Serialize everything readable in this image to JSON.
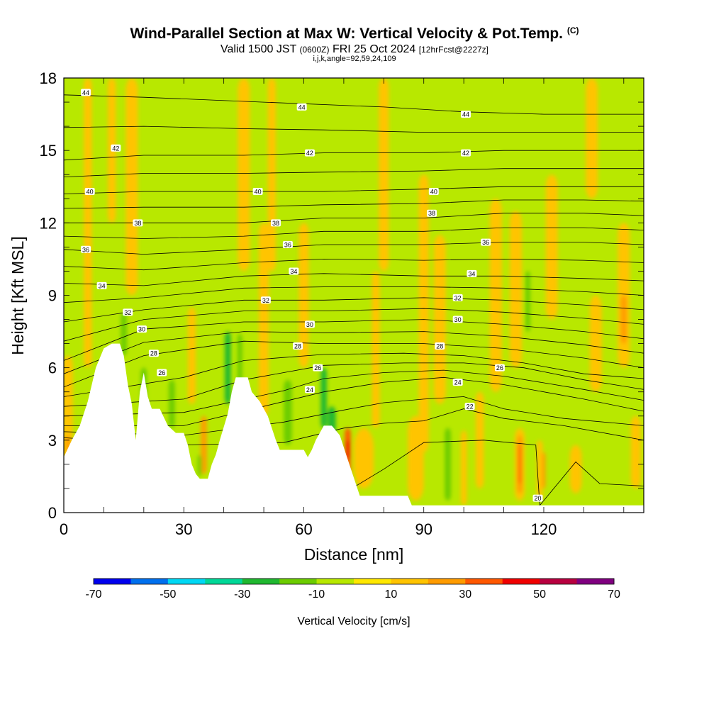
{
  "title": "Wind-Parallel Section at Max W: Vertical Velocity & Pot.Temp.",
  "title_mark": "(C)",
  "subtitle_main": "Valid 1500 JST",
  "subtitle_utc": "(0600Z)",
  "subtitle_date": "FRI 25 Oct 2024",
  "subtitle_fcst": "[12hrFcst@2227z]",
  "subtitle2": "i,j,k,angle=92,59,24,109",
  "chart_data": {
    "type": "heatmap",
    "xlabel": "Distance [nm]",
    "ylabel": "Height [Kft MSL]",
    "xlim": [
      0,
      145
    ],
    "ylim": [
      0,
      18
    ],
    "x_ticks": [
      0,
      30,
      60,
      90,
      120
    ],
    "y_ticks": [
      0,
      3,
      6,
      9,
      12,
      15,
      18
    ],
    "colorbar": {
      "label": "Vertical Velocity [cm/s]",
      "tick_labels": [
        "-70",
        "-50",
        "-30",
        "-10",
        "10",
        "30",
        "50",
        "70"
      ],
      "levels": [
        -70,
        -60,
        -50,
        -40,
        -30,
        -20,
        -10,
        0,
        10,
        20,
        30,
        40,
        50,
        60,
        70
      ],
      "colors": [
        "#0000ee",
        "#0070ee",
        "#00d8f4",
        "#00d898",
        "#20b830",
        "#6ccc00",
        "#b8e800",
        "#ffe800",
        "#ffc400",
        "#ff9c00",
        "#ff5800",
        "#f00000",
        "#b80040",
        "#800080"
      ]
    },
    "field_background_color": "#b8e800",
    "terrain_color": "#ffffff",
    "contour_field": "Potential Temperature",
    "contour_label_values": [
      "20",
      "22",
      "24",
      "26",
      "28",
      "30",
      "32",
      "34",
      "36",
      "38",
      "40",
      "42",
      "44"
    ],
    "terrain_profile_kft": [
      [
        0,
        2.3
      ],
      [
        2,
        3
      ],
      [
        4,
        3.6
      ],
      [
        6,
        4.6
      ],
      [
        8,
        6
      ],
      [
        10,
        6.8
      ],
      [
        12,
        7
      ],
      [
        14,
        7
      ],
      [
        15,
        6.5
      ],
      [
        16,
        5.3
      ],
      [
        17,
        4.5
      ],
      [
        18,
        3
      ],
      [
        19,
        5
      ],
      [
        20,
        5.8
      ],
      [
        21,
        4.8
      ],
      [
        22,
        4.3
      ],
      [
        24,
        4.3
      ],
      [
        26,
        3.6
      ],
      [
        28,
        3.3
      ],
      [
        30,
        3.3
      ],
      [
        31,
        2.8
      ],
      [
        32,
        2
      ],
      [
        33,
        1.6
      ],
      [
        34,
        1.4
      ],
      [
        36,
        1.4
      ],
      [
        37,
        2
      ],
      [
        38,
        2.4
      ],
      [
        39,
        3
      ],
      [
        41,
        4.1
      ],
      [
        42,
        5
      ],
      [
        43,
        5.6
      ],
      [
        46,
        5.6
      ],
      [
        47,
        5
      ],
      [
        49,
        4.6
      ],
      [
        51,
        4
      ],
      [
        52,
        3.5
      ],
      [
        53,
        3
      ],
      [
        54,
        2.6
      ],
      [
        60,
        2.6
      ],
      [
        61,
        2.3
      ],
      [
        62,
        2.6
      ],
      [
        63,
        3
      ],
      [
        65,
        3.6
      ],
      [
        67,
        3.6
      ],
      [
        69,
        3.2
      ],
      [
        71,
        2.2
      ],
      [
        73,
        1.2
      ],
      [
        74,
        0.7
      ],
      [
        86,
        0.7
      ],
      [
        87,
        0.3
      ],
      [
        145,
        0.3
      ]
    ],
    "theta_lines": [
      {
        "label": "20",
        "points": [
          [
            0,
            1.5
          ],
          [
            20,
            1.4
          ],
          [
            50,
            1.0
          ],
          [
            72,
            1.0
          ],
          [
            80,
            1.8
          ],
          [
            90,
            2.9
          ],
          [
            105,
            3.0
          ],
          [
            118,
            2.8
          ],
          [
            119,
            0.3
          ],
          [
            128,
            2.1
          ],
          [
            134,
            1.2
          ],
          [
            145,
            1.1
          ]
        ]
      },
      {
        "label": "22",
        "points": [
          [
            0,
            3.1
          ],
          [
            30,
            2.8
          ],
          [
            55,
            2.9
          ],
          [
            70,
            3.5
          ],
          [
            80,
            3.7
          ],
          [
            90,
            3.8
          ],
          [
            100,
            4.3
          ],
          [
            110,
            3.9
          ],
          [
            125,
            3.6
          ],
          [
            145,
            3.0
          ]
        ]
      },
      {
        "label": "24",
        "points": [
          [
            0,
            3.6
          ],
          [
            30,
            3.6
          ],
          [
            55,
            4.6
          ],
          [
            65,
            5.0
          ],
          [
            80,
            5.4
          ],
          [
            95,
            5.6
          ],
          [
            110,
            5.3
          ],
          [
            130,
            4.7
          ],
          [
            145,
            4.2
          ]
        ]
      },
      {
        "label": "26",
        "points": [
          [
            0,
            4.4
          ],
          [
            30,
            4.7
          ],
          [
            45,
            5.5
          ],
          [
            65,
            6.1
          ],
          [
            85,
            6.2
          ],
          [
            100,
            6.2
          ],
          [
            115,
            6.0
          ],
          [
            130,
            5.5
          ],
          [
            145,
            5.1
          ]
        ]
      },
      {
        "label": "28",
        "points": [
          [
            0,
            5.2
          ],
          [
            20,
            6.5
          ],
          [
            45,
            7.1
          ],
          [
            65,
            7.0
          ],
          [
            90,
            7.0
          ],
          [
            110,
            6.8
          ],
          [
            130,
            6.4
          ],
          [
            145,
            6.0
          ]
        ]
      },
      {
        "label": "30",
        "points": [
          [
            0,
            6.3
          ],
          [
            20,
            7.6
          ],
          [
            45,
            7.9
          ],
          [
            65,
            7.9
          ],
          [
            90,
            8.0
          ],
          [
            110,
            7.8
          ],
          [
            130,
            7.5
          ],
          [
            145,
            7.2
          ]
        ]
      },
      {
        "label": "32",
        "points": [
          [
            0,
            7.9
          ],
          [
            20,
            8.4
          ],
          [
            45,
            8.8
          ],
          [
            65,
            8.8
          ],
          [
            90,
            8.9
          ],
          [
            110,
            8.8
          ],
          [
            130,
            8.6
          ],
          [
            145,
            8.4
          ]
        ]
      },
      {
        "label": "34",
        "points": [
          [
            0,
            9.5
          ],
          [
            20,
            9.4
          ],
          [
            45,
            9.8
          ],
          [
            65,
            9.9
          ],
          [
            90,
            9.8
          ],
          [
            110,
            9.8
          ],
          [
            130,
            9.7
          ],
          [
            145,
            9.6
          ]
        ]
      },
      {
        "label": "36",
        "points": [
          [
            0,
            10.9
          ],
          [
            20,
            10.7
          ],
          [
            45,
            10.9
          ],
          [
            65,
            11.1
          ],
          [
            90,
            11.1
          ],
          [
            110,
            11.2
          ],
          [
            130,
            11.2
          ],
          [
            145,
            11.1
          ]
        ]
      },
      {
        "label": "38",
        "points": [
          [
            0,
            12.0
          ],
          [
            20,
            12.0
          ],
          [
            45,
            12.0
          ],
          [
            65,
            12.2
          ],
          [
            90,
            12.2
          ],
          [
            110,
            12.4
          ],
          [
            130,
            12.4
          ],
          [
            145,
            12.3
          ]
        ]
      },
      {
        "label": "40",
        "points": [
          [
            0,
            13.2
          ],
          [
            20,
            13.3
          ],
          [
            45,
            13.3
          ],
          [
            65,
            13.3
          ],
          [
            90,
            13.4
          ],
          [
            110,
            13.5
          ],
          [
            130,
            13.5
          ],
          [
            145,
            13.5
          ]
        ]
      },
      {
        "label": "42",
        "points": [
          [
            0,
            14.6
          ],
          [
            20,
            14.8
          ],
          [
            45,
            14.8
          ],
          [
            65,
            14.9
          ],
          [
            90,
            14.9
          ],
          [
            110,
            15.0
          ],
          [
            130,
            15.0
          ],
          [
            145,
            15.0
          ]
        ]
      },
      {
        "label": "44",
        "points": [
          [
            0,
            17.3
          ],
          [
            20,
            17.2
          ],
          [
            50,
            17.0
          ],
          [
            80,
            16.8
          ],
          [
            100,
            16.6
          ],
          [
            120,
            16.5
          ],
          [
            145,
            16.5
          ]
        ]
      }
    ],
    "contour_labels": [
      {
        "text": "44",
        "x": 5.5,
        "y": 17.4
      },
      {
        "text": "44",
        "x": 59.5,
        "y": 16.8
      },
      {
        "text": "44",
        "x": 100.5,
        "y": 16.5
      },
      {
        "text": "42",
        "x": 13,
        "y": 15.1
      },
      {
        "text": "42",
        "x": 61.5,
        "y": 14.9
      },
      {
        "text": "42",
        "x": 100.5,
        "y": 14.9
      },
      {
        "text": "40",
        "x": 6.5,
        "y": 13.3
      },
      {
        "text": "40",
        "x": 48.5,
        "y": 13.3
      },
      {
        "text": "40",
        "x": 92.5,
        "y": 13.3
      },
      {
        "text": "38",
        "x": 18.5,
        "y": 12.0
      },
      {
        "text": "38",
        "x": 53,
        "y": 12.0
      },
      {
        "text": "38",
        "x": 92,
        "y": 12.4
      },
      {
        "text": "36",
        "x": 5.5,
        "y": 10.9
      },
      {
        "text": "36",
        "x": 56,
        "y": 11.1
      },
      {
        "text": "36",
        "x": 105.5,
        "y": 11.2
      },
      {
        "text": "34",
        "x": 9.5,
        "y": 9.4
      },
      {
        "text": "34",
        "x": 57.5,
        "y": 10.0
      },
      {
        "text": "34",
        "x": 102,
        "y": 9.9
      },
      {
        "text": "32",
        "x": 16,
        "y": 8.3
      },
      {
        "text": "32",
        "x": 50.5,
        "y": 8.8
      },
      {
        "text": "32",
        "x": 98.5,
        "y": 8.9
      },
      {
        "text": "30",
        "x": 19.5,
        "y": 7.6
      },
      {
        "text": "30",
        "x": 61.5,
        "y": 7.8
      },
      {
        "text": "30",
        "x": 98.5,
        "y": 8.0
      },
      {
        "text": "28",
        "x": 22.5,
        "y": 6.6
      },
      {
        "text": "28",
        "x": 58.5,
        "y": 6.9
      },
      {
        "text": "28",
        "x": 94,
        "y": 6.9
      },
      {
        "text": "26",
        "x": 24.5,
        "y": 5.8
      },
      {
        "text": "26",
        "x": 63.5,
        "y": 6.0
      },
      {
        "text": "26",
        "x": 109,
        "y": 6.0
      },
      {
        "text": "24",
        "x": 61.5,
        "y": 5.1
      },
      {
        "text": "24",
        "x": 98.5,
        "y": 5.4
      },
      {
        "text": "22",
        "x": 101.5,
        "y": 4.4
      },
      {
        "text": "20",
        "x": 118.5,
        "y": 0.6
      }
    ],
    "velocity_features": [
      {
        "x": 1,
        "y0": 1.5,
        "y1": 6.5,
        "w": 2.5,
        "v": 10
      },
      {
        "x": 6,
        "y0": 6,
        "y1": 18,
        "w": 2,
        "v": 10
      },
      {
        "x": 1,
        "y0": 2.5,
        "y1": 3.2,
        "w": 1.2,
        "v": 20
      },
      {
        "x": 12,
        "y0": 12,
        "y1": 18,
        "w": 2,
        "v": 10
      },
      {
        "x": 15,
        "y0": 6.5,
        "y1": 8.3,
        "w": 1.5,
        "v": -20
      },
      {
        "x": 17,
        "y0": 9,
        "y1": 18,
        "w": 3,
        "v": 10
      },
      {
        "x": 20,
        "y0": 3.8,
        "y1": 6.0,
        "w": 1.5,
        "v": -20
      },
      {
        "x": 23,
        "y0": 3.3,
        "y1": 4.0,
        "w": 2,
        "v": 20
      },
      {
        "x": 27,
        "y0": 3.5,
        "y1": 5.5,
        "w": 1.5,
        "v": -20
      },
      {
        "x": 32,
        "y0": 4.5,
        "y1": 8.5,
        "w": 2,
        "v": 10
      },
      {
        "x": 35,
        "y0": 1.6,
        "y1": 4.0,
        "w": 1.5,
        "v": 20
      },
      {
        "x": 34,
        "y0": 1.5,
        "y1": 2.4,
        "w": 1,
        "v": -20
      },
      {
        "x": 41,
        "y0": 4.5,
        "y1": 7.5,
        "w": 1.5,
        "v": -30
      },
      {
        "x": 44,
        "y0": 5.2,
        "y1": 7.4,
        "w": 1.2,
        "v": -20
      },
      {
        "x": 45,
        "y0": 10,
        "y1": 18,
        "w": 3,
        "v": 10
      },
      {
        "x": 50,
        "y0": 4,
        "y1": 12,
        "w": 2.5,
        "v": 10
      },
      {
        "x": 52,
        "y0": 10,
        "y1": 18,
        "w": 2,
        "v": 10
      },
      {
        "x": 56,
        "y0": 2.8,
        "y1": 5.5,
        "w": 2,
        "v": -20
      },
      {
        "x": 60,
        "y0": 6,
        "y1": 12,
        "w": 2.5,
        "v": 10
      },
      {
        "x": 65,
        "y0": 3.5,
        "y1": 6.0,
        "w": 1.5,
        "v": -30
      },
      {
        "x": 67,
        "y0": 3.2,
        "y1": 4.4,
        "w": 2,
        "v": -30
      },
      {
        "x": 71,
        "y0": 1.5,
        "y1": 3.5,
        "w": 1.5,
        "v": 30
      },
      {
        "x": 71,
        "y0": 2.2,
        "y1": 3.0,
        "w": 0.8,
        "v": 40
      },
      {
        "x": 75,
        "y0": 1,
        "y1": 3.5,
        "w": 5,
        "v": 10
      },
      {
        "x": 78,
        "y0": 3.5,
        "y1": 10,
        "w": 2,
        "v": 10
      },
      {
        "x": 80,
        "y0": 10,
        "y1": 18,
        "w": 2.5,
        "v": 10
      },
      {
        "x": 88,
        "y0": 0.5,
        "y1": 4,
        "w": 4,
        "v": 10
      },
      {
        "x": 90,
        "y0": 2.5,
        "y1": 14,
        "w": 2.5,
        "v": 10
      },
      {
        "x": 94,
        "y0": 4.5,
        "y1": 11.5,
        "w": 3,
        "v": 10
      },
      {
        "x": 96,
        "y0": 0.5,
        "y1": 3.5,
        "w": 1.5,
        "v": -20
      },
      {
        "x": 100,
        "y0": 0.3,
        "y1": 3.4,
        "w": 1.5,
        "v": 10
      },
      {
        "x": 104,
        "y0": 1,
        "y1": 5,
        "w": 2,
        "v": 10
      },
      {
        "x": 108,
        "y0": 5,
        "y1": 13,
        "w": 3,
        "v": 10
      },
      {
        "x": 113,
        "y0": 6,
        "y1": 12.5,
        "w": 3,
        "v": 10
      },
      {
        "x": 114,
        "y0": 0.5,
        "y1": 3.5,
        "w": 2.5,
        "v": 10
      },
      {
        "x": 114,
        "y0": 0.8,
        "y1": 3.2,
        "w": 1.2,
        "v": 20
      },
      {
        "x": 114,
        "y0": 1.2,
        "y1": 2.8,
        "w": 0.6,
        "v": 30
      },
      {
        "x": 119,
        "y0": 0.5,
        "y1": 3.0,
        "w": 1.5,
        "v": 10
      },
      {
        "x": 120,
        "y0": 1.0,
        "y1": 2.5,
        "w": 0.8,
        "v": 20
      },
      {
        "x": 122,
        "y0": 8,
        "y1": 14,
        "w": 3,
        "v": 10
      },
      {
        "x": 128,
        "y0": 0.8,
        "y1": 2.8,
        "w": 3,
        "v": 10
      },
      {
        "x": 133,
        "y0": 5,
        "y1": 9,
        "w": 3,
        "v": 10
      },
      {
        "x": 140,
        "y0": 6,
        "y1": 12,
        "w": 3,
        "v": 10
      },
      {
        "x": 140,
        "y0": 7,
        "y1": 9,
        "w": 1.5,
        "v": 20
      },
      {
        "x": 116,
        "y0": 7.5,
        "y1": 10,
        "w": 1.2,
        "v": -20
      },
      {
        "x": 132,
        "y0": 13,
        "y1": 18,
        "w": 3,
        "v": 10
      },
      {
        "x": 143,
        "y0": 1,
        "y1": 4,
        "w": 2.5,
        "v": 10
      }
    ]
  }
}
